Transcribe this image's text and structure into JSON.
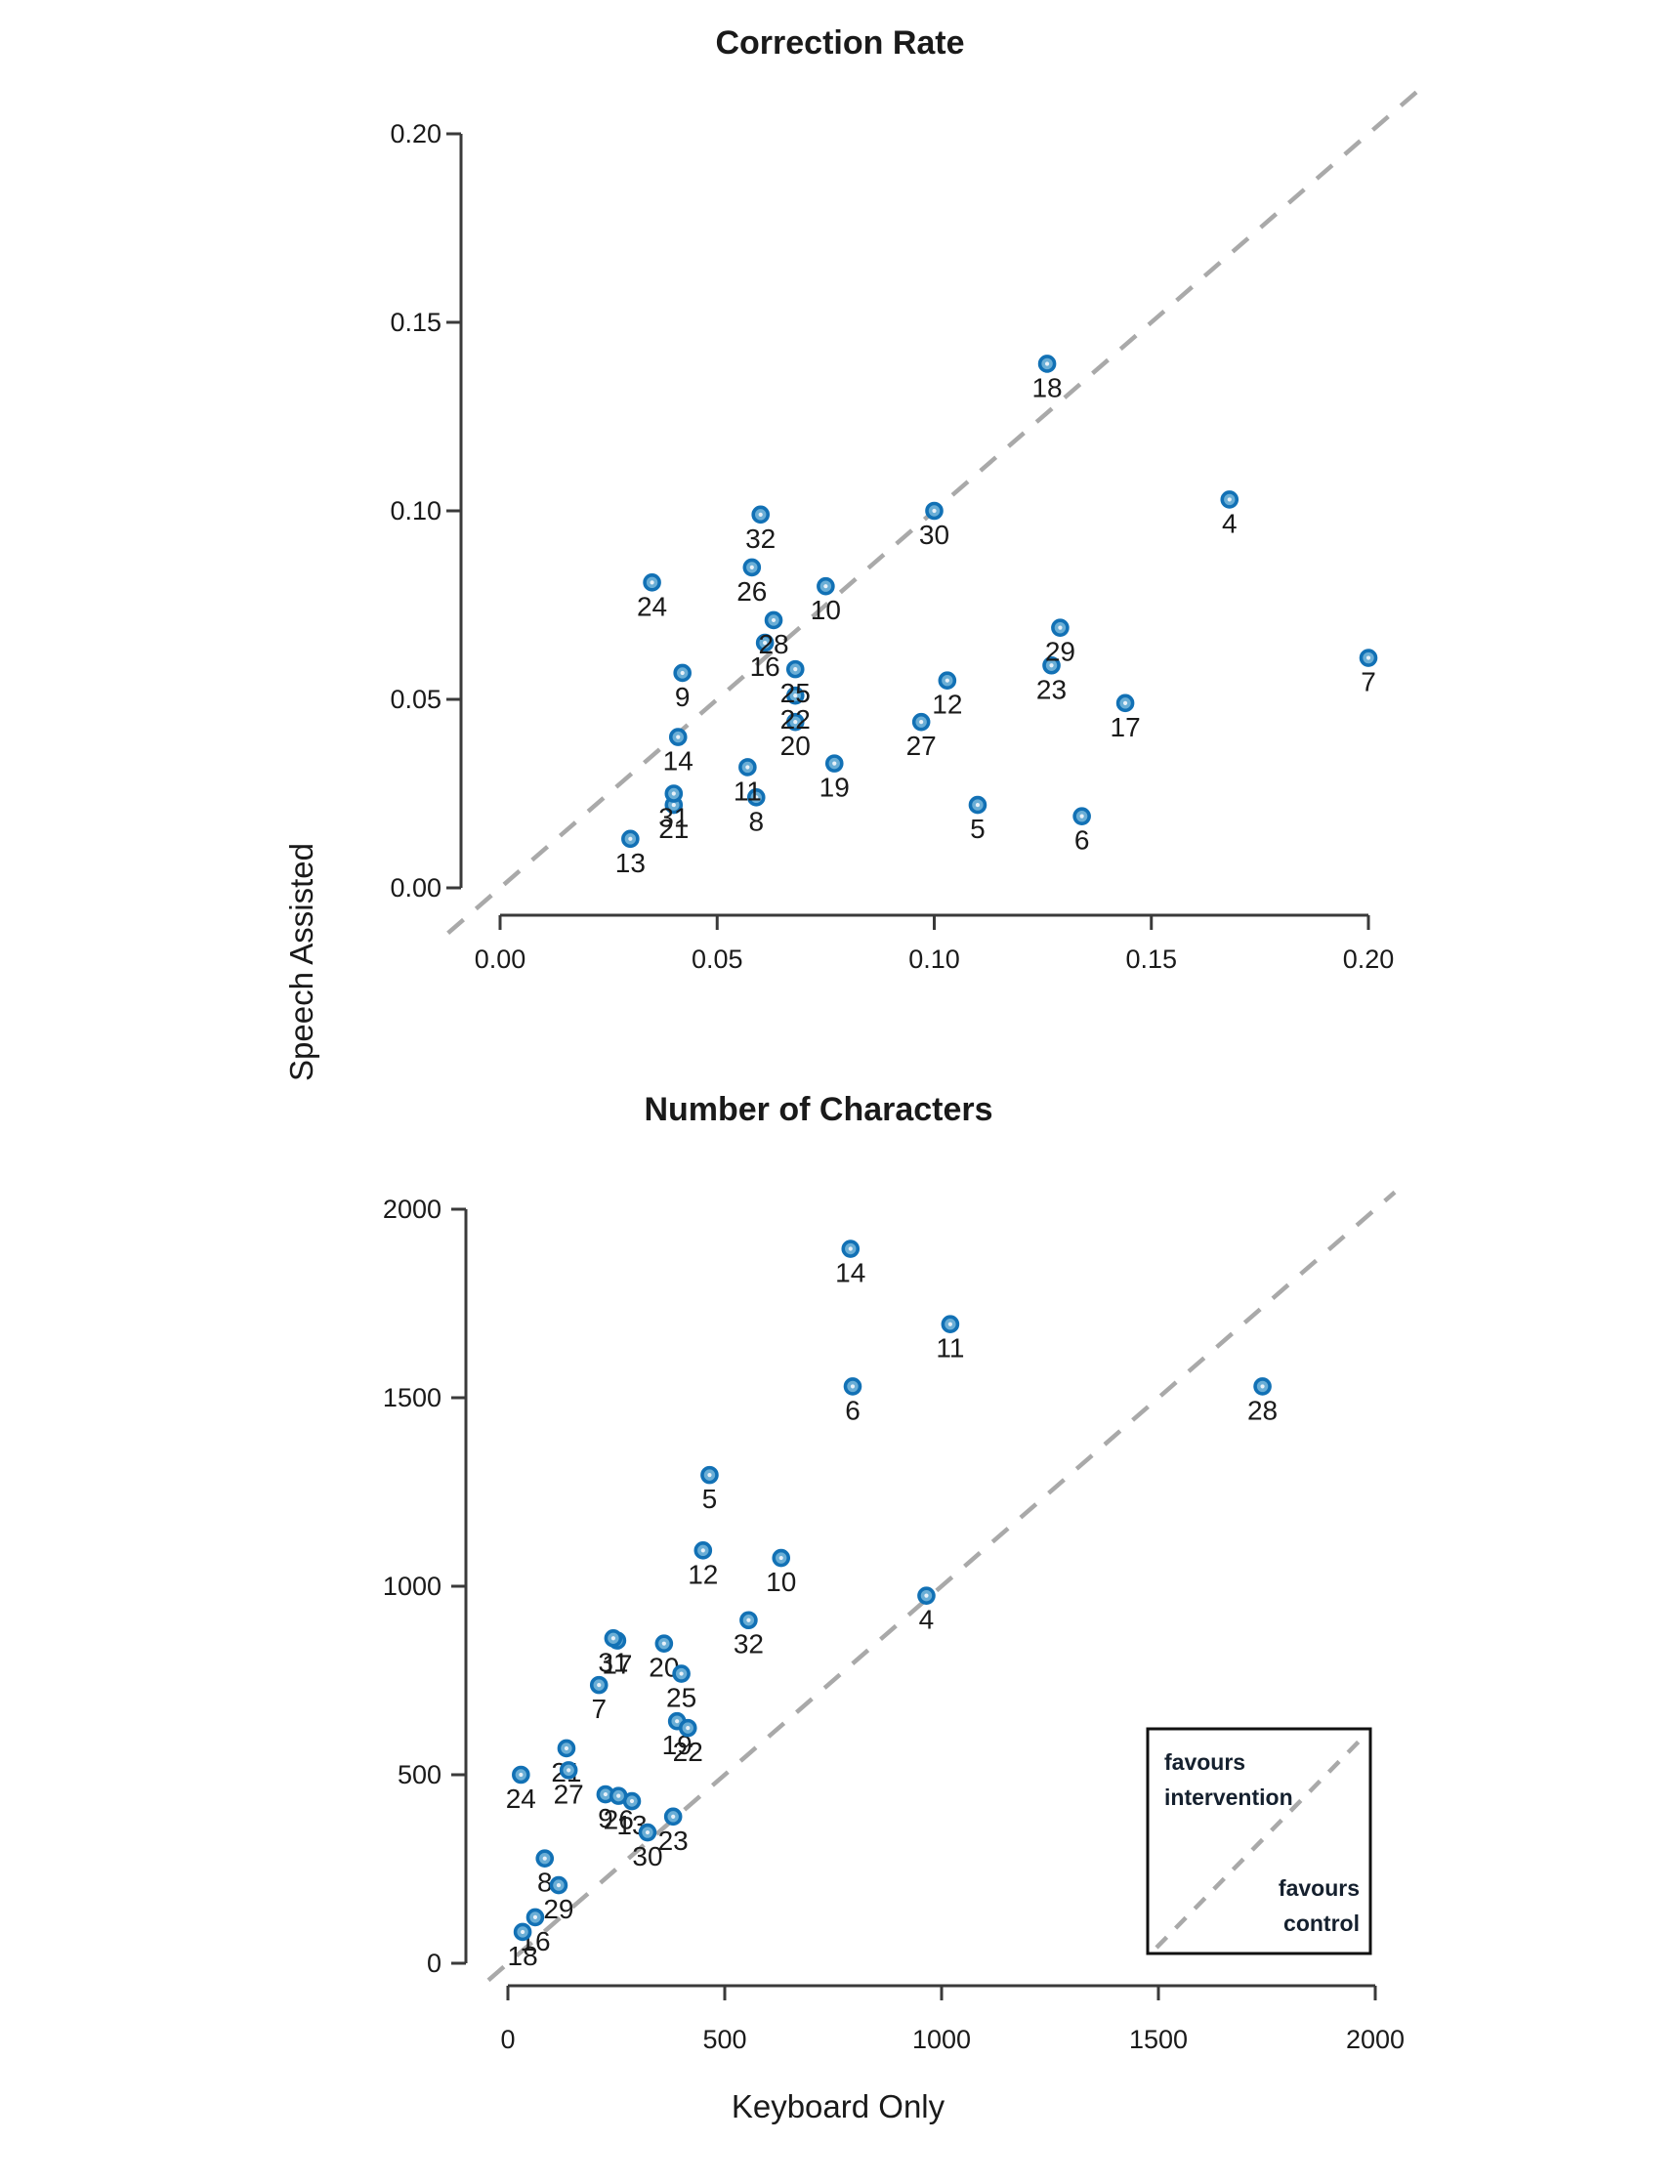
{
  "figure": {
    "xlabel": "Keyboard Only",
    "ylabel": "Speech Assisted",
    "legend": {
      "above_line1": "favours",
      "above_line2": "intervention",
      "below_line1": "favours",
      "below_line2": "control"
    },
    "colors": {
      "point_stroke": "#1271b5",
      "point_fill": "#6aaed6",
      "point_core": "#e8f1f8",
      "dash_line": "#a9a9a9",
      "axis": "#3a3a3a",
      "text": "#1a1a1a"
    }
  },
  "chart_data": [
    {
      "type": "scatter",
      "title": "Correction Rate",
      "xlabel": "Keyboard Only",
      "ylabel": "Speech Assisted",
      "xlim": [
        0,
        0.2
      ],
      "ylim": [
        0,
        0.2
      ],
      "grid": false,
      "identity_line": true,
      "xticks": [
        {
          "v": 0.0,
          "label": "0.00"
        },
        {
          "v": 0.05,
          "label": "0.05"
        },
        {
          "v": 0.1,
          "label": "0.10"
        },
        {
          "v": 0.15,
          "label": "0.15"
        },
        {
          "v": 0.2,
          "label": "0.20"
        }
      ],
      "yticks": [
        {
          "v": 0.0,
          "label": "0.00"
        },
        {
          "v": 0.05,
          "label": "0.05"
        },
        {
          "v": 0.1,
          "label": "0.10"
        },
        {
          "v": 0.15,
          "label": "0.15"
        },
        {
          "v": 0.2,
          "label": "0.20"
        }
      ],
      "points": [
        {
          "label": "4",
          "x": 0.168,
          "y": 0.103
        },
        {
          "label": "5",
          "x": 0.11,
          "y": 0.022
        },
        {
          "label": "6",
          "x": 0.134,
          "y": 0.019
        },
        {
          "label": "7",
          "x": 0.2,
          "y": 0.061
        },
        {
          "label": "8",
          "x": 0.059,
          "y": 0.024
        },
        {
          "label": "9",
          "x": 0.042,
          "y": 0.057
        },
        {
          "label": "10",
          "x": 0.075,
          "y": 0.08
        },
        {
          "label": "11",
          "x": 0.057,
          "y": 0.032
        },
        {
          "label": "12",
          "x": 0.103,
          "y": 0.055
        },
        {
          "label": "13",
          "x": 0.03,
          "y": 0.013
        },
        {
          "label": "14",
          "x": 0.041,
          "y": 0.04
        },
        {
          "label": "16",
          "x": 0.061,
          "y": 0.065
        },
        {
          "label": "17",
          "x": 0.144,
          "y": 0.049
        },
        {
          "label": "18",
          "x": 0.126,
          "y": 0.139
        },
        {
          "label": "19",
          "x": 0.077,
          "y": 0.033
        },
        {
          "label": "20",
          "x": 0.068,
          "y": 0.044
        },
        {
          "label": "21",
          "x": 0.04,
          "y": 0.022
        },
        {
          "label": "22",
          "x": 0.068,
          "y": 0.051
        },
        {
          "label": "23",
          "x": 0.127,
          "y": 0.059
        },
        {
          "label": "24",
          "x": 0.035,
          "y": 0.081
        },
        {
          "label": "25",
          "x": 0.068,
          "y": 0.058
        },
        {
          "label": "26",
          "x": 0.058,
          "y": 0.085
        },
        {
          "label": "27",
          "x": 0.097,
          "y": 0.044
        },
        {
          "label": "28",
          "x": 0.063,
          "y": 0.071
        },
        {
          "label": "29",
          "x": 0.129,
          "y": 0.069
        },
        {
          "label": "30",
          "x": 0.1,
          "y": 0.1
        },
        {
          "label": "31",
          "x": 0.04,
          "y": 0.025
        },
        {
          "label": "32",
          "x": 0.06,
          "y": 0.099
        }
      ]
    },
    {
      "type": "scatter",
      "title": "Number of Characters",
      "xlabel": "Keyboard Only",
      "ylabel": "Speech Assisted",
      "xlim": [
        0,
        2000
      ],
      "ylim": [
        0,
        2000
      ],
      "grid": false,
      "identity_line": true,
      "legend_position": "lower-right",
      "xticks": [
        {
          "v": 0,
          "label": "0"
        },
        {
          "v": 500,
          "label": "500"
        },
        {
          "v": 1000,
          "label": "1000"
        },
        {
          "v": 1500,
          "label": "1500"
        },
        {
          "v": 2000,
          "label": "2000"
        }
      ],
      "yticks": [
        {
          "v": 0,
          "label": "0"
        },
        {
          "v": 500,
          "label": "500"
        },
        {
          "v": 1000,
          "label": "1000"
        },
        {
          "v": 1500,
          "label": "1500"
        },
        {
          "v": 2000,
          "label": "2000"
        }
      ],
      "points": [
        {
          "label": "4",
          "x": 965,
          "y": 975
        },
        {
          "label": "5",
          "x": 465,
          "y": 1295
        },
        {
          "label": "6",
          "x": 795,
          "y": 1530
        },
        {
          "label": "7",
          "x": 210,
          "y": 738
        },
        {
          "label": "8",
          "x": 85,
          "y": 278
        },
        {
          "label": "9",
          "x": 225,
          "y": 448
        },
        {
          "label": "10",
          "x": 630,
          "y": 1075
        },
        {
          "label": "11",
          "x": 1020,
          "y": 1695
        },
        {
          "label": "12",
          "x": 450,
          "y": 1095
        },
        {
          "label": "13",
          "x": 286,
          "y": 430
        },
        {
          "label": "14",
          "x": 790,
          "y": 1895
        },
        {
          "label": "16",
          "x": 63,
          "y": 122
        },
        {
          "label": "17",
          "x": 252,
          "y": 856
        },
        {
          "label": "18",
          "x": 34,
          "y": 83
        },
        {
          "label": "19",
          "x": 390,
          "y": 642
        },
        {
          "label": "20",
          "x": 360,
          "y": 848
        },
        {
          "label": "21",
          "x": 135,
          "y": 570
        },
        {
          "label": "22",
          "x": 415,
          "y": 624
        },
        {
          "label": "23",
          "x": 381,
          "y": 389
        },
        {
          "label": "24",
          "x": 30,
          "y": 500
        },
        {
          "label": "25",
          "x": 400,
          "y": 768
        },
        {
          "label": "26",
          "x": 255,
          "y": 444
        },
        {
          "label": "27",
          "x": 140,
          "y": 512
        },
        {
          "label": "28",
          "x": 1740,
          "y": 1530
        },
        {
          "label": "29",
          "x": 117,
          "y": 207
        },
        {
          "label": "30",
          "x": 322,
          "y": 347
        },
        {
          "label": "31",
          "x": 243,
          "y": 862
        },
        {
          "label": "32",
          "x": 555,
          "y": 910
        }
      ]
    }
  ]
}
